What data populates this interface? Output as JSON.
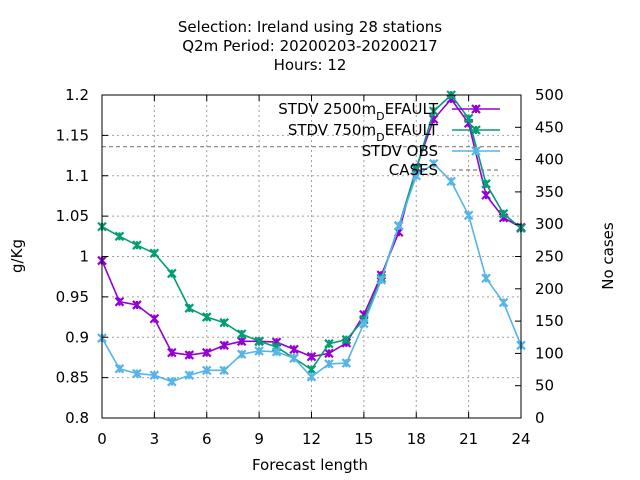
{
  "chart_data": {
    "type": "line",
    "title_lines": [
      "Selection: Ireland using    28 stations",
      "Q2m   Period: 20200203-20200217",
      "Hours:  12"
    ],
    "xlabel": "Forecast length",
    "ylabel": "g/Kg",
    "y2label": "No cases",
    "xlim": [
      0,
      24
    ],
    "ylim": [
      0.8,
      1.2
    ],
    "y2lim": [
      0,
      500
    ],
    "xticks": [
      "0",
      "3",
      "6",
      "9",
      "12",
      "15",
      "18",
      "21",
      "24"
    ],
    "yticks": [
      "0.8",
      "0.85",
      "0.9",
      "0.95",
      "1",
      "1.05",
      "1.1",
      "1.15",
      "1.2"
    ],
    "y2ticks": [
      "0",
      "50",
      "100",
      "150",
      "200",
      "250",
      "300",
      "350",
      "400",
      "450",
      "500"
    ],
    "grid": true,
    "legend_position": "top-right",
    "x": [
      0,
      1,
      2,
      3,
      4,
      5,
      6,
      7,
      8,
      9,
      10,
      11,
      12,
      13,
      14,
      15,
      16,
      17,
      18,
      19,
      20,
      21,
      22,
      23,
      24
    ],
    "series": [
      {
        "name": "STDV 2500m_DEFAULT",
        "label_main": "STDV 2500m",
        "label_sub": "D",
        "label_rest": "EFAULT",
        "color": "#9400d3",
        "axis": "y",
        "values": [
          0.995,
          0.944,
          0.94,
          0.923,
          0.881,
          0.878,
          0.881,
          0.89,
          0.895,
          0.895,
          0.894,
          0.885,
          0.876,
          0.88,
          0.893,
          0.928,
          0.977,
          1.03,
          1.11,
          1.17,
          1.195,
          1.165,
          1.076,
          1.048,
          1.036
        ]
      },
      {
        "name": "STDV 750m_DEFAULT",
        "label_main": "STDV 750m",
        "label_sub": "D",
        "label_rest": "EFAULT",
        "color": "#009e73",
        "axis": "y",
        "values": [
          1.037,
          1.025,
          1.014,
          1.004,
          0.979,
          0.936,
          0.925,
          0.918,
          0.904,
          0.895,
          0.888,
          0.874,
          0.86,
          0.892,
          0.897,
          0.922,
          0.973,
          1.038,
          1.108,
          1.18,
          1.2,
          1.171,
          1.09,
          1.053,
          1.035
        ]
      },
      {
        "name": "STDV OBS",
        "label_main": "STDV OBS",
        "label_sub": "",
        "label_rest": "",
        "color": "#56b4e9",
        "axis": "y",
        "values": [
          0.899,
          0.861,
          0.855,
          0.853,
          0.845,
          0.853,
          0.859,
          0.859,
          0.879,
          0.883,
          0.882,
          0.874,
          0.851,
          0.867,
          0.868,
          0.917,
          0.971,
          1.038,
          1.1,
          1.115,
          1.093,
          1.051,
          0.973,
          0.943,
          0.89
        ]
      },
      {
        "name": "CASES",
        "label_main": "CASES",
        "label_sub": "",
        "label_rest": "",
        "color": "#808080",
        "axis": "y2",
        "dashed": true,
        "constant_value": 420
      }
    ]
  }
}
